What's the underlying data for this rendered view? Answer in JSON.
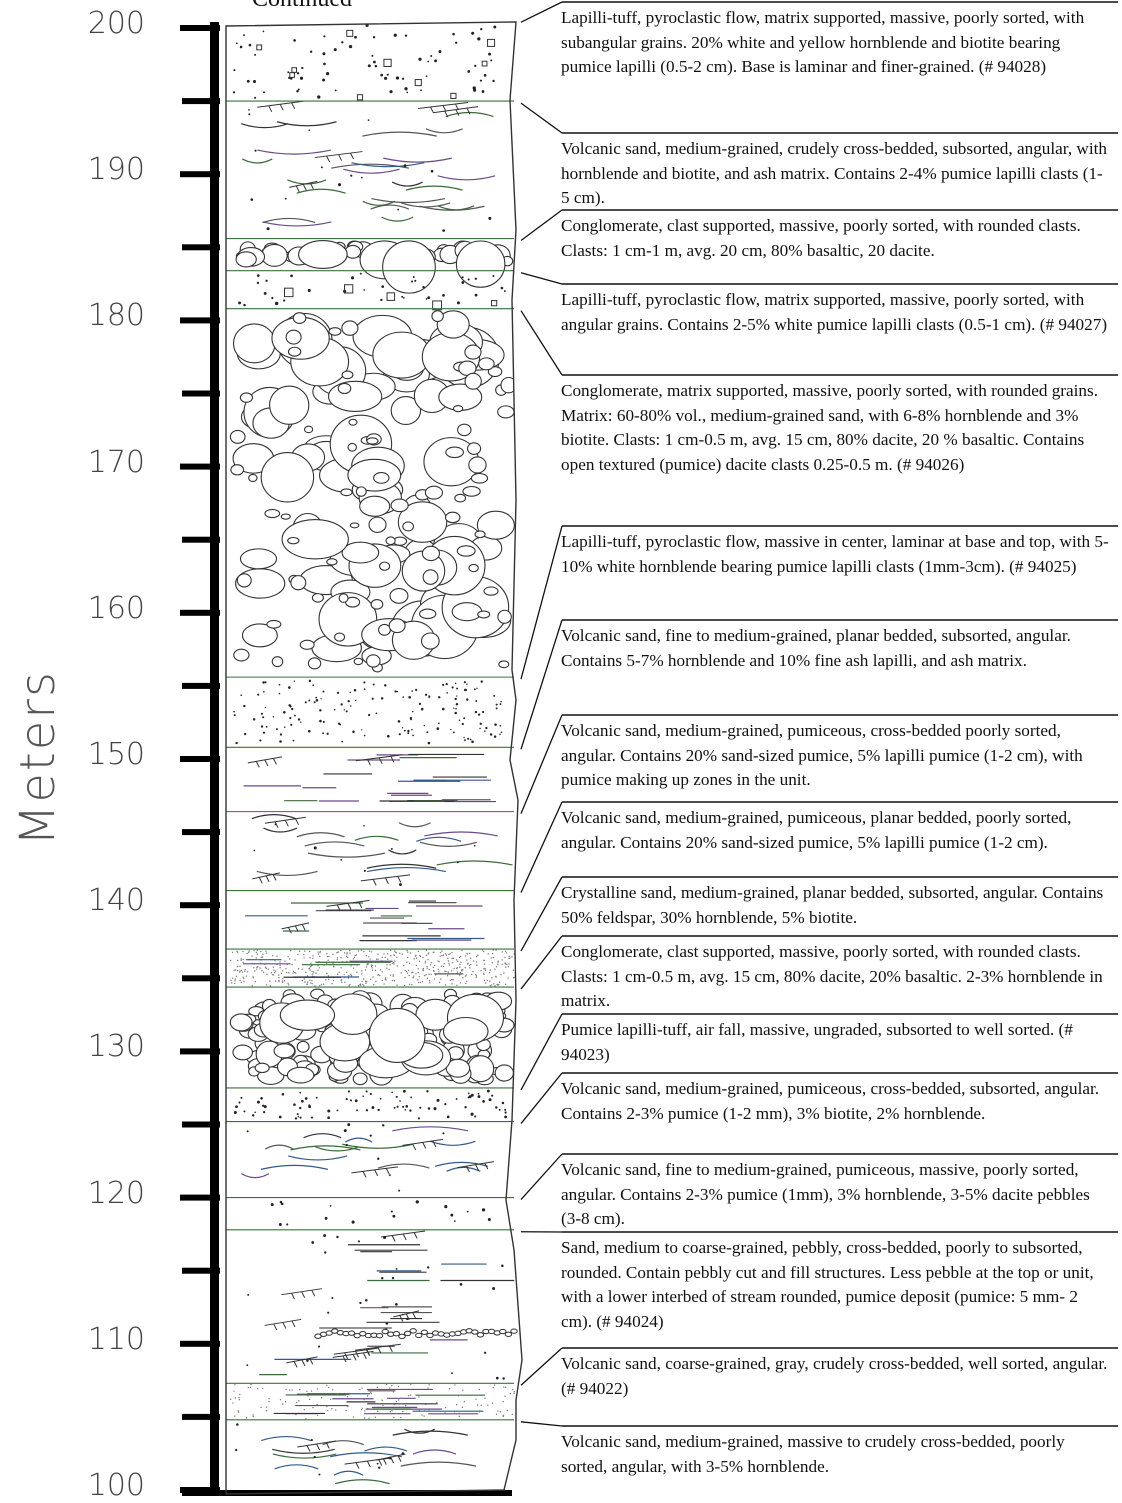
{
  "header": {
    "continued": "Continued"
  },
  "axis": {
    "title": "Meters",
    "ticks": [
      {
        "value": 200,
        "label": "200"
      },
      {
        "value": 190,
        "label": "190"
      },
      {
        "value": 180,
        "label": "180"
      },
      {
        "value": 170,
        "label": "170"
      },
      {
        "value": 160,
        "label": "160"
      },
      {
        "value": 150,
        "label": "150"
      },
      {
        "value": 140,
        "label": "140"
      },
      {
        "value": 130,
        "label": "130"
      },
      {
        "value": 120,
        "label": "120"
      },
      {
        "value": 110,
        "label": "110"
      },
      {
        "value": 100,
        "label": "100"
      }
    ]
  },
  "units": [
    {
      "id": "u200",
      "lithology": "lapilli-tuff",
      "top_m": 200.4,
      "base_m": 195.0,
      "description": "Lapilli-tuff, pyroclastic flow, matrix supported, massive, poorly sorted, with subangular grains.  20% white and yellow hornblende and biotite bearing pumice lapilli (0.5-2 cm).  Base is laminar and finer-grained. (# 94028)"
    },
    {
      "id": "u190",
      "lithology": "volcanic-sand-crossbedded",
      "top_m": 195.0,
      "base_m": 185.6,
      "description": "Volcanic sand, medium-grained, crudely cross-bedded, subsorted, angular, with hornblende and biotite, and ash matrix.  Contains 2-4% pumice lapilli clasts (1-5 cm)."
    },
    {
      "id": "u185",
      "lithology": "conglomerate-clast-supported",
      "top_m": 185.6,
      "base_m": 183.4,
      "description": "Conglomerate, clast supported, massive, poorly sorted, with rounded clasts.  Clasts: 1 cm-1 m, avg. 20 cm, 80% basaltic, 20 dacite."
    },
    {
      "id": "u182",
      "lithology": "lapilli-tuff",
      "top_m": 183.4,
      "base_m": 180.8,
      "description": "Lapilli-tuff, pyroclastic flow, matrix supported, massive, poorly sorted, with angular grains.  Contains 2-5% white pumice lapilli clasts (0.5-1 cm). (# 94027)"
    },
    {
      "id": "u170",
      "lithology": "conglomerate-matrix-supported",
      "top_m": 180.8,
      "base_m": 155.6,
      "description": "Conglomerate, matrix supported, massive, poorly sorted, with rounded grains.  Matrix: 60-80% vol., medium-grained sand, with 6-8% hornblende and 3% biotite.  Clasts: 1 cm-0.5 m, avg. 15 cm, 80% dacite, 20 % basaltic.  Contains open textured (pumice) dacite clasts 0.25-0.5 m. (# 94026)"
    },
    {
      "id": "u155",
      "lithology": "lapilli-tuff-dotted",
      "top_m": 155.6,
      "base_m": 150.8,
      "description": "Lapilli-tuff, pyroclastic flow, massive in center, laminar at base and top, with  5-10% white hornblende bearing pumice lapilli clasts (1mm-3cm). (# 94025)"
    },
    {
      "id": "u150",
      "lithology": "volcanic-sand-planar",
      "top_m": 150.8,
      "base_m": 146.4,
      "description": "Volcanic sand, fine to medium-grained, planar bedded, subsorted, angular.  Contains 5-7% hornblende and 10% fine ash lapilli, and ash matrix."
    },
    {
      "id": "u145",
      "lithology": "volcanic-sand-crossbedded",
      "top_m": 146.4,
      "base_m": 141.0,
      "description": "Volcanic sand, medium-grained, pumiceous, cross-bedded poorly sorted, angular.  Contains 20% sand-sized pumice, 5% lapilli pumice (1-2 cm), with pumice making up zones in the unit."
    },
    {
      "id": "u140",
      "lithology": "volcanic-sand-planar",
      "top_m": 141.0,
      "base_m": 137.0,
      "description": "Volcanic sand, medium-grained, pumiceous, planar bedded, poorly sorted, angular.  Contains 20% sand-sized pumice, 5% lapilli pumice (1-2 cm)."
    },
    {
      "id": "u136",
      "lithology": "crystalline-sand",
      "top_m": 137.0,
      "base_m": 134.4,
      "description": "Crystalline sand, medium-grained, planar bedded, subsorted, angular.  Contains 50% feldspar, 30% hornblende, 5% biotite."
    },
    {
      "id": "u131",
      "lithology": "conglomerate-clast-supported",
      "top_m": 134.4,
      "base_m": 127.5,
      "description": "Conglomerate, clast supported, massive, poorly sorted, with rounded clasts.  Clasts: 1 cm-0.5 m, avg. 15 cm, 80% dacite, 20% basaltic.  2-3% hornblende in matrix."
    },
    {
      "id": "u127",
      "lithology": "pumice-lapilli-tuff",
      "top_m": 127.5,
      "base_m": 125.2,
      "description": "Pumice lapilli-tuff, air fall, massive, ungraded, subsorted to well sorted. (# 94023)"
    },
    {
      "id": "u123",
      "lithology": "volcanic-sand-crossbedded",
      "top_m": 125.2,
      "base_m": 120.0,
      "description": "Volcanic sand, medium-grained, pumiceous, cross-bedded, subsorted, angular.  Contains 2-3% pumice (1-2 mm), 3% biotite, 2% hornblende."
    },
    {
      "id": "u119",
      "lithology": "volcanic-sand-massive",
      "top_m": 120.0,
      "base_m": 117.8,
      "description": "Volcanic sand, fine to medium-grained, pumiceous, massive, poorly sorted, angular.  Contains 2-3% pumice (1mm), 3% hornblende, 3-5% dacite pebbles (3-8 cm)."
    },
    {
      "id": "u113",
      "lithology": "pebbly-sand",
      "top_m": 117.8,
      "base_m": 107.3,
      "description": "Sand, medium to coarse-grained, pebbly, cross-bedded, poorly to subsorted, rounded.  Contain pebbly cut and fill structures.  Less pebble at the top or unit, with a lower interbed of stream rounded, pumice deposit (pumice: 5 mm- 2 cm). (# 94024)"
    },
    {
      "id": "u106",
      "lithology": "volcanic-sand-coarse",
      "top_m": 107.3,
      "base_m": 104.8,
      "description": "Volcanic sand, coarse-grained, gray, crudely cross-bedded, well sorted, angular. (# 94022)"
    },
    {
      "id": "u102",
      "lithology": "volcanic-sand-crossbedded",
      "top_m": 104.8,
      "base_m": 100.0,
      "description": "Volcanic sand, medium-grained, massive to crudely cross-bedded, poorly sorted, angular, with 3-5% hornblende."
    }
  ]
}
